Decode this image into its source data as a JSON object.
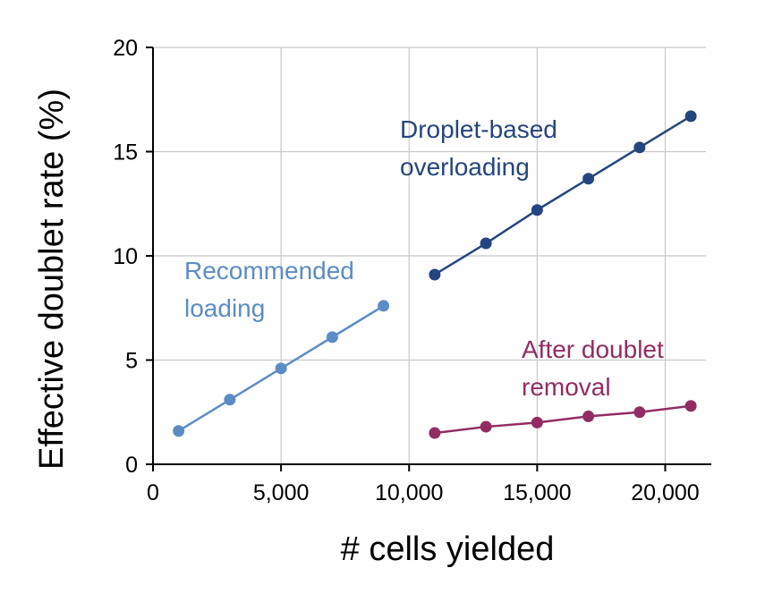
{
  "chart_data": {
    "type": "line",
    "xlabel": "# cells yielded",
    "ylabel": "Effective doublet rate (%)",
    "xlim": [
      0,
      21800
    ],
    "ylim": [
      0,
      20
    ],
    "x_ticks": [
      {
        "value": 0,
        "label": "0"
      },
      {
        "value": 5000,
        "label": "5,000"
      },
      {
        "value": 10000,
        "label": "10,000"
      },
      {
        "value": 15000,
        "label": "15,000"
      },
      {
        "value": 20000,
        "label": "20,000"
      }
    ],
    "y_ticks": [
      {
        "value": 0,
        "label": "0"
      },
      {
        "value": 5,
        "label": "5"
      },
      {
        "value": 10,
        "label": "10"
      },
      {
        "value": 15,
        "label": "15"
      },
      {
        "value": 20,
        "label": "20"
      }
    ],
    "grid": true,
    "series": [
      {
        "key": "recommended",
        "color": "#5b8cc6",
        "x": [
          1000,
          3000,
          5000,
          7000,
          9000
        ],
        "y": [
          1.6,
          3.1,
          4.6,
          6.1,
          7.6
        ],
        "label_lines": [
          "Recommended",
          "loading"
        ]
      },
      {
        "key": "overloading",
        "color": "#24457f",
        "x": [
          11000,
          13000,
          15000,
          17000,
          19000,
          21000
        ],
        "y": [
          9.1,
          10.6,
          12.2,
          13.7,
          15.2,
          16.7
        ],
        "label_lines": [
          "Droplet-based",
          "overloading"
        ]
      },
      {
        "key": "after_removal",
        "color": "#922c63",
        "x": [
          11000,
          13000,
          15000,
          17000,
          19000,
          21000
        ],
        "y": [
          1.5,
          1.8,
          2.0,
          2.3,
          2.5,
          2.8
        ],
        "label_lines": [
          "After doublet",
          "removal"
        ]
      }
    ]
  }
}
